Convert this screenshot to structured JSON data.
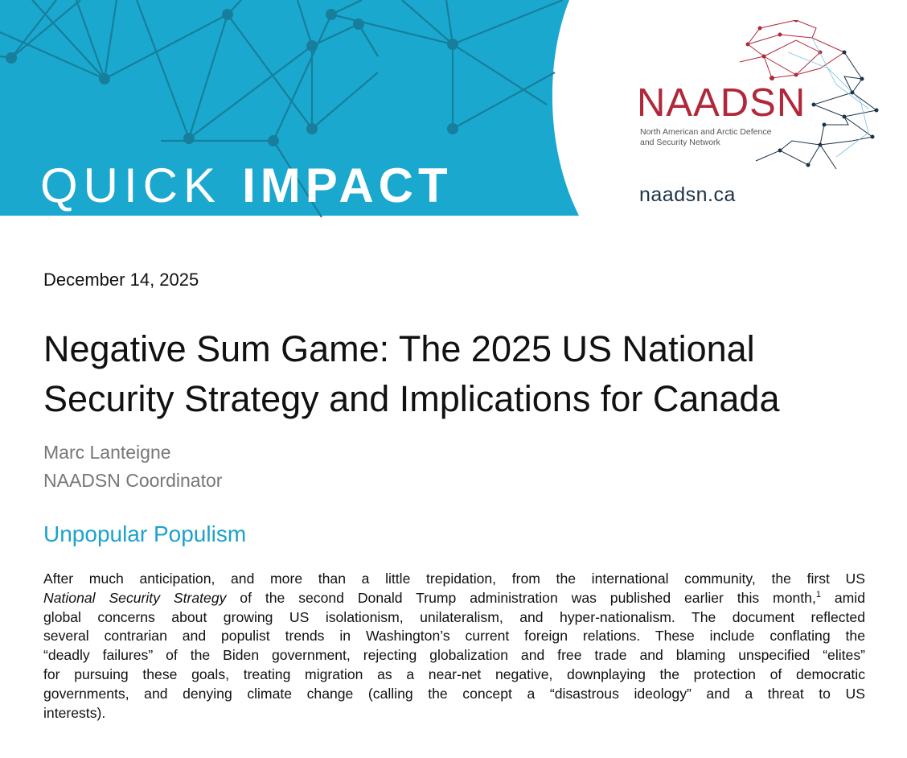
{
  "banner": {
    "series_light": "QUICK",
    "series_bold": "IMPACT",
    "color": "#1aa8cf",
    "network_color": "#177f9b"
  },
  "logo": {
    "name": "NAADSN",
    "subtitle_line1": "North American and Arctic Defence",
    "subtitle_line2": "and Security Network",
    "website": "naadsn.ca",
    "name_color": "#b0283a"
  },
  "document": {
    "date": "December 14, 2025",
    "title_line1": "Negative Sum Game: The 2025 US National",
    "title_line2": "Security Strategy and Implications for Canada",
    "author_name": "Marc Lanteigne",
    "author_role": "NAADSN Coordinator",
    "section_heading": "Unpopular Populism",
    "heading_color": "#1ba3cb",
    "paragraph": {
      "line1": "After much anticipation, and more than a little trepidation, from the international community, the first US",
      "line2_italic": "National Security Strategy",
      "line2_rest": " of the second Donald Trump administration was published earlier this month,",
      "footnote": "1",
      "line2_end": " amid",
      "line3": "global concerns about growing US isolationism, unilateralism, and hyper-nationalism. The document reflected",
      "line4": "several contrarian and populist trends in Washington’s current foreign relations. These include conflating the",
      "line5": "“deadly failures” of the Biden government, rejecting globalization and free trade and blaming unspecified “elites”",
      "line6": "for pursuing these goals, treating migration as a near-net negative, downplaying the protection of democratic",
      "line7": "governments, and denying climate change (calling the concept a “disastrous ideology” and a threat to US",
      "line8": "interests)."
    }
  }
}
